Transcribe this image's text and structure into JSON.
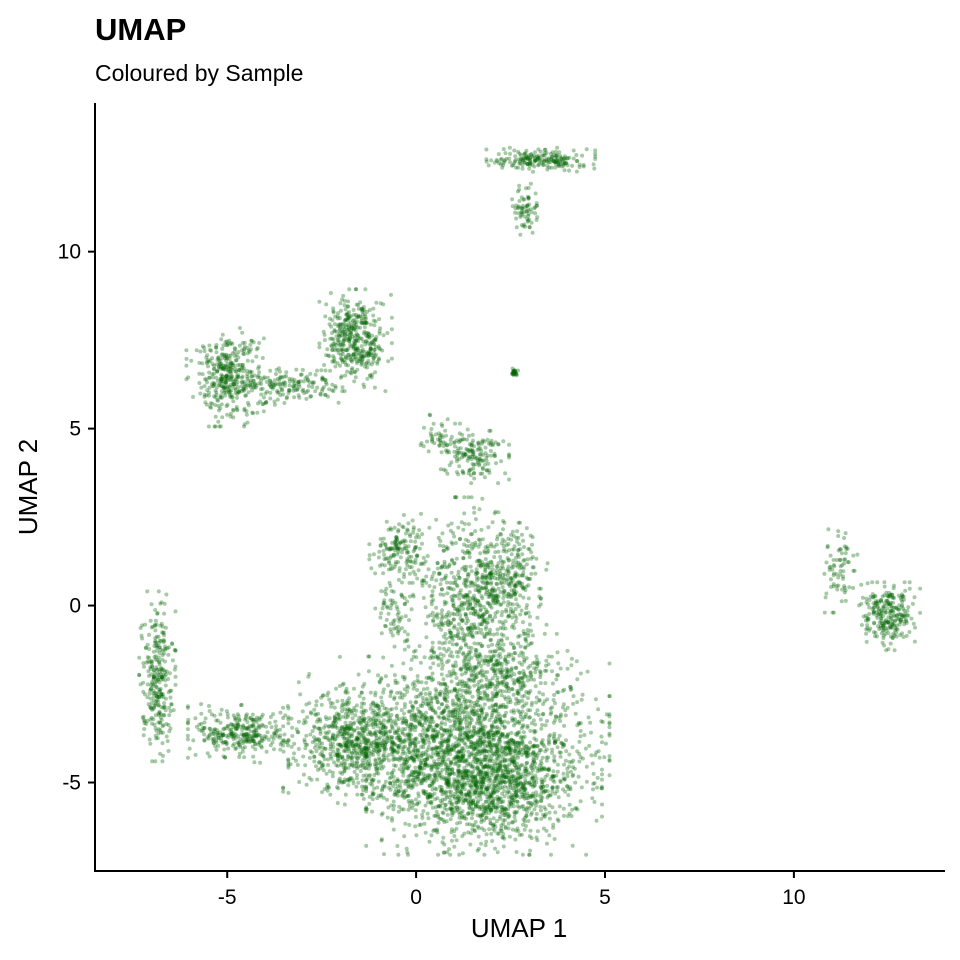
{
  "chart_data": {
    "type": "scatter",
    "title": "UMAP",
    "subtitle": "Coloured by Sample",
    "xlabel": "UMAP 1",
    "ylabel": "UMAP 2",
    "xlim": [
      -8.5,
      14.0
    ],
    "ylim": [
      -7.5,
      14.2
    ],
    "xticks": [
      -5,
      0,
      5,
      10
    ],
    "yticks": [
      -5,
      0,
      5,
      10
    ],
    "xtick_labels": [
      "-5",
      "0",
      "5",
      "10"
    ],
    "ytick_labels": [
      "-5",
      "0",
      "5",
      "10"
    ],
    "grid": false,
    "legend": "none",
    "point_color": "#006400",
    "point_opacity": 0.35,
    "clusters": [
      {
        "cx": 1.8,
        "cy": -5.0,
        "sx": 1.3,
        "sy": 0.85,
        "n": 1500
      },
      {
        "cx": 0.8,
        "cy": -3.6,
        "sx": 1.8,
        "sy": 0.9,
        "n": 1300
      },
      {
        "cx": -1.7,
        "cy": -3.9,
        "sx": 0.7,
        "sy": 0.6,
        "n": 500
      },
      {
        "cx": 1.5,
        "cy": -0.3,
        "sx": 0.75,
        "sy": 1.4,
        "n": 800
      },
      {
        "cx": 2.4,
        "cy": 0.9,
        "sx": 0.45,
        "sy": 0.6,
        "n": 220
      },
      {
        "cx": -0.4,
        "cy": 1.6,
        "sx": 0.35,
        "sy": 0.4,
        "n": 150
      },
      {
        "cx": -0.6,
        "cy": -0.2,
        "sx": 0.2,
        "sy": 0.4,
        "n": 60
      },
      {
        "cx": 2.2,
        "cy": -2.0,
        "sx": 0.9,
        "sy": 0.5,
        "n": 250
      },
      {
        "cx": -4.6,
        "cy": -3.6,
        "sx": 0.6,
        "sy": 0.35,
        "n": 300
      },
      {
        "cx": -6.85,
        "cy": -2.0,
        "sx": 0.2,
        "sy": 1.0,
        "n": 280
      },
      {
        "cx": -5.0,
        "cy": 6.5,
        "sx": 0.45,
        "sy": 0.6,
        "n": 350
      },
      {
        "cx": -3.5,
        "cy": 6.2,
        "sx": 0.75,
        "sy": 0.25,
        "n": 180
      },
      {
        "cx": -1.6,
        "cy": 7.5,
        "sx": 0.4,
        "sy": 0.6,
        "n": 400
      },
      {
        "cx": 1.5,
        "cy": 4.3,
        "sx": 0.4,
        "sy": 0.35,
        "n": 160
      },
      {
        "cx": 0.6,
        "cy": 4.8,
        "sx": 0.2,
        "sy": 0.3,
        "n": 40
      },
      {
        "cx": 12.5,
        "cy": -0.3,
        "sx": 0.35,
        "sy": 0.4,
        "n": 250
      },
      {
        "cx": 11.2,
        "cy": 1.0,
        "sx": 0.2,
        "sy": 0.5,
        "n": 70
      },
      {
        "cx": 3.3,
        "cy": 12.6,
        "sx": 0.6,
        "sy": 0.15,
        "n": 200
      },
      {
        "cx": 2.9,
        "cy": 11.2,
        "sx": 0.15,
        "sy": 0.3,
        "n": 70
      },
      {
        "cx": 2.6,
        "cy": 6.6,
        "sx": 0.04,
        "sy": 0.05,
        "n": 25
      }
    ]
  }
}
